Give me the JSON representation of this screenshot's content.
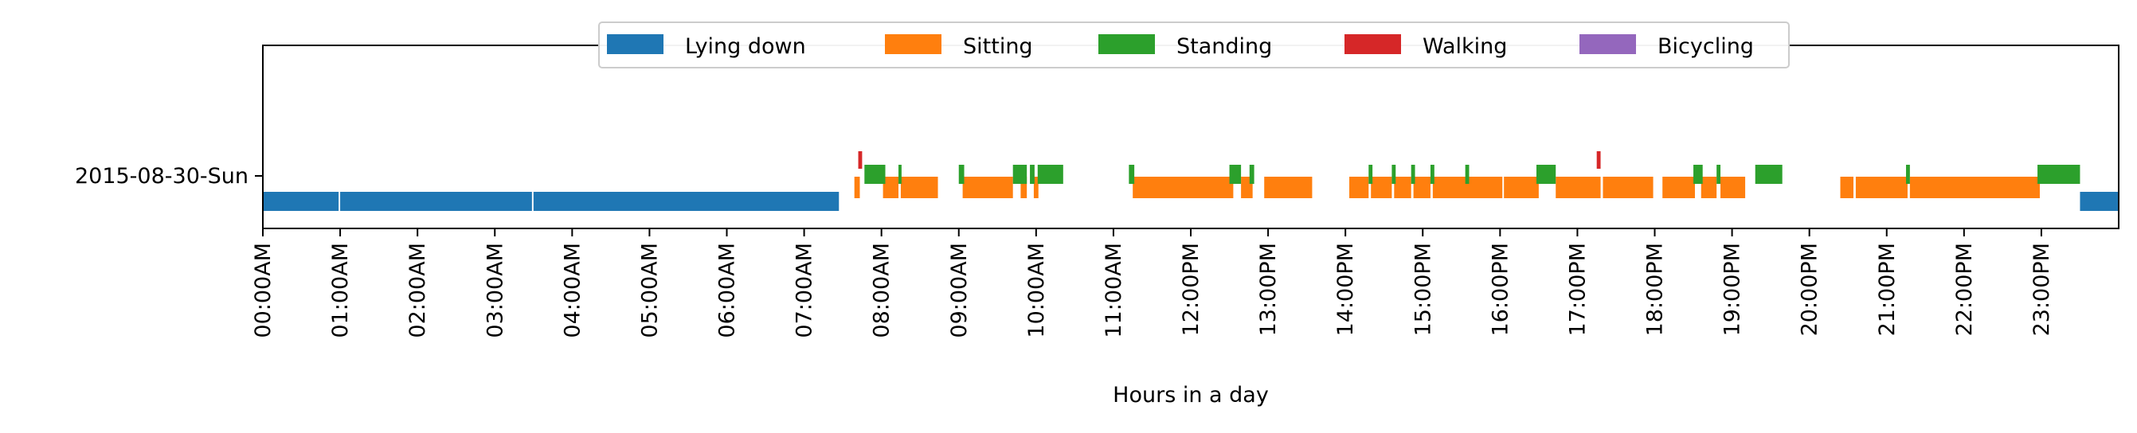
{
  "chart_data": {
    "type": "timeline",
    "ylabel": "",
    "xlabel": "Hours in a day",
    "xlim": [
      0,
      24
    ],
    "y_category": "2015-08-30-Sun",
    "x_ticks": [
      {
        "value": 0,
        "label": "00:00AM"
      },
      {
        "value": 1,
        "label": "01:00AM"
      },
      {
        "value": 2,
        "label": "02:00AM"
      },
      {
        "value": 3,
        "label": "03:00AM"
      },
      {
        "value": 4,
        "label": "04:00AM"
      },
      {
        "value": 5,
        "label": "05:00AM"
      },
      {
        "value": 6,
        "label": "06:00AM"
      },
      {
        "value": 7,
        "label": "07:00AM"
      },
      {
        "value": 8,
        "label": "08:00AM"
      },
      {
        "value": 9,
        "label": "09:00AM"
      },
      {
        "value": 10,
        "label": "10:00AM"
      },
      {
        "value": 11,
        "label": "11:00AM"
      },
      {
        "value": 12,
        "label": "12:00PM"
      },
      {
        "value": 13,
        "label": "13:00PM"
      },
      {
        "value": 14,
        "label": "14:00PM"
      },
      {
        "value": 15,
        "label": "15:00PM"
      },
      {
        "value": 16,
        "label": "16:00PM"
      },
      {
        "value": 17,
        "label": "17:00PM"
      },
      {
        "value": 18,
        "label": "18:00PM"
      },
      {
        "value": 19,
        "label": "19:00PM"
      },
      {
        "value": 20,
        "label": "20:00PM"
      },
      {
        "value": 21,
        "label": "21:00PM"
      },
      {
        "value": 22,
        "label": "22:00PM"
      },
      {
        "value": 23,
        "label": "23:00PM"
      }
    ],
    "legend_position": "top-center",
    "series": [
      {
        "name": "Lying down",
        "color": "#1f77b4",
        "intervals": [
          [
            0.0,
            0.98
          ],
          [
            1.0,
            3.48
          ],
          [
            3.5,
            7.45
          ],
          [
            23.5,
            24.0
          ]
        ]
      },
      {
        "name": "Sitting",
        "color": "#ff7f0e",
        "intervals": [
          [
            7.65,
            7.72
          ],
          [
            8.02,
            8.22
          ],
          [
            8.25,
            8.73
          ],
          [
            9.05,
            9.7
          ],
          [
            9.8,
            9.88
          ],
          [
            9.97,
            10.03
          ],
          [
            11.25,
            12.55
          ],
          [
            12.65,
            12.8
          ],
          [
            12.95,
            13.57
          ],
          [
            14.05,
            14.3
          ],
          [
            14.33,
            14.6
          ],
          [
            14.63,
            14.85
          ],
          [
            14.88,
            15.1
          ],
          [
            15.13,
            16.03
          ],
          [
            16.05,
            16.5
          ],
          [
            16.72,
            17.3
          ],
          [
            17.33,
            17.98
          ],
          [
            18.1,
            18.52
          ],
          [
            18.6,
            18.8
          ],
          [
            18.85,
            19.17
          ],
          [
            20.4,
            20.57
          ],
          [
            20.6,
            21.27
          ],
          [
            21.3,
            22.98
          ]
        ]
      },
      {
        "name": "Standing",
        "color": "#2ca02c",
        "intervals": [
          [
            7.78,
            8.05
          ],
          [
            8.22,
            8.26
          ],
          [
            9.0,
            9.07
          ],
          [
            9.7,
            9.88
          ],
          [
            9.92,
            9.98
          ],
          [
            10.02,
            10.35
          ],
          [
            11.2,
            11.27
          ],
          [
            12.5,
            12.65
          ],
          [
            12.76,
            12.82
          ],
          [
            14.3,
            14.35
          ],
          [
            14.6,
            14.65
          ],
          [
            14.85,
            14.9
          ],
          [
            15.1,
            15.15
          ],
          [
            15.55,
            15.6
          ],
          [
            16.47,
            16.72
          ],
          [
            18.5,
            18.62
          ],
          [
            18.8,
            18.85
          ],
          [
            19.3,
            19.65
          ],
          [
            21.25,
            21.3
          ],
          [
            22.95,
            23.5
          ]
        ]
      },
      {
        "name": "Walking",
        "color": "#d62728",
        "intervals": [
          [
            7.7,
            7.75
          ],
          [
            17.25,
            17.3
          ]
        ]
      },
      {
        "name": "Bicycling",
        "color": "#9467bd",
        "intervals": []
      }
    ]
  }
}
